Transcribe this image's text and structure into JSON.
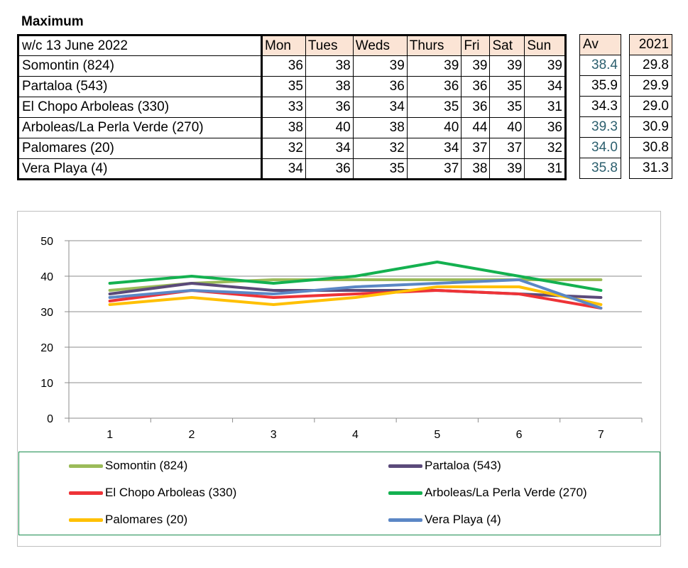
{
  "heading": "Maximum",
  "table": {
    "week_label": "w/c 13 June 2022",
    "days": [
      "Mon",
      "Tues",
      "Weds",
      "Thurs",
      "Fri",
      "Sat",
      "Sun"
    ],
    "av_header": "Av",
    "prev_header": "2021",
    "rows": [
      {
        "station": "Somontin (824)",
        "values": [
          "36",
          "38",
          "39",
          "39",
          "39",
          "39",
          "39"
        ],
        "av": "38.4",
        "prev": "29.8"
      },
      {
        "station": "Partaloa (543)",
        "values": [
          "35",
          "38",
          "36",
          "36",
          "36",
          "35",
          "34"
        ],
        "av": "35.9",
        "prev": "29.9"
      },
      {
        "station": "El Chopo  Arboleas (330)",
        "values": [
          "33",
          "36",
          "34",
          "35",
          "36",
          "35",
          "31"
        ],
        "av": "34.3",
        "prev": "29.0"
      },
      {
        "station": "Arboleas/La Perla Verde (270)",
        "values": [
          "38",
          "40",
          "38",
          "40",
          "44",
          "40",
          "36"
        ],
        "av": "39.3",
        "prev": "30.9"
      },
      {
        "station": "Palomares (20)",
        "values": [
          "32",
          "34",
          "32",
          "34",
          "37",
          "37",
          "32"
        ],
        "av": "34.0",
        "prev": "30.8"
      },
      {
        "station": "Vera Playa (4)",
        "values": [
          "34",
          "36",
          "35",
          "37",
          "38",
          "39",
          "31"
        ],
        "av": "35.8",
        "prev": "31.3"
      }
    ]
  },
  "chart_data": {
    "type": "line",
    "x": [
      1,
      2,
      3,
      4,
      5,
      6,
      7
    ],
    "ylim": [
      0,
      50
    ],
    "yticks": [
      0,
      10,
      20,
      30,
      40,
      50
    ],
    "grid": true,
    "legend_position": "bottom",
    "series": [
      {
        "name": "Somontin (824)",
        "color": "#9bbb59",
        "values": [
          36,
          38,
          39,
          39,
          39,
          39,
          39
        ]
      },
      {
        "name": "Partaloa (543)",
        "color": "#5b4a7a",
        "values": [
          35,
          38,
          36,
          36,
          36,
          35,
          34
        ]
      },
      {
        "name": "El Chopo  Arboleas (330)",
        "color": "#ee3337",
        "values": [
          33,
          36,
          34,
          35,
          36,
          35,
          31
        ]
      },
      {
        "name": "Arboleas/La Perla Verde (270)",
        "color": "#14b150",
        "values": [
          38,
          40,
          38,
          40,
          44,
          40,
          36
        ]
      },
      {
        "name": "Palomares (20)",
        "color": "#ffc000",
        "values": [
          32,
          34,
          32,
          34,
          37,
          37,
          32
        ]
      },
      {
        "name": "Vera Playa (4)",
        "color": "#5b87c5",
        "values": [
          34,
          36,
          35,
          37,
          38,
          39,
          31
        ]
      }
    ]
  }
}
